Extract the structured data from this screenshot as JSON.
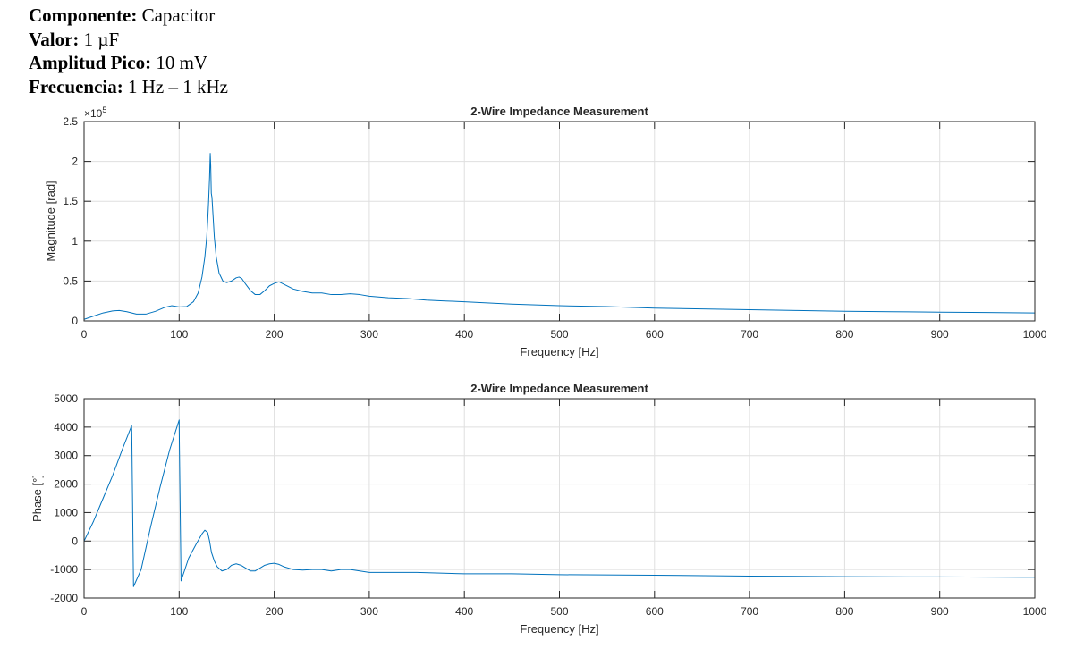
{
  "header": {
    "component_label": "Componente:",
    "component_value": "Capacitor",
    "value_label": "Valor:",
    "value_value": "1 µF",
    "amplitude_label": "Amplitud Pico:",
    "amplitude_value": "10 mV",
    "frequency_label": "Frecuencia:",
    "frequency_value": "1 Hz – 1 kHz"
  },
  "chart_data": [
    {
      "type": "line",
      "title": "2-Wire Impedance Measurement",
      "xlabel": "Frequency [Hz]",
      "ylabel": "Magnitude [rad]",
      "xlim": [
        0,
        1000
      ],
      "ylim": [
        0,
        2.5
      ],
      "y_multiplier_label": "×10",
      "y_multiplier_exp": "5",
      "xticks": [
        "0",
        "100",
        "200",
        "300",
        "400",
        "500",
        "600",
        "700",
        "800",
        "900",
        "1000"
      ],
      "yticks": [
        "0",
        "0.5",
        "1",
        "1.5",
        "2",
        "2.5"
      ],
      "grid": true,
      "line_color": "#0072BD",
      "series": [
        {
          "x": [
            0,
            10,
            20,
            30,
            37,
            45,
            55,
            65,
            75,
            85,
            92,
            100,
            108,
            115,
            120,
            124,
            127,
            129,
            130,
            131,
            132,
            132.7,
            133.2,
            133.8,
            134.5,
            135.5,
            137,
            139,
            142,
            146,
            150,
            155,
            160,
            163,
            166,
            170,
            175,
            180,
            185,
            190,
            195,
            200,
            205,
            210,
            220,
            230,
            240,
            250,
            260,
            270,
            280,
            290,
            300,
            320,
            340,
            360,
            380,
            400,
            450,
            500,
            550,
            600,
            650,
            700,
            750,
            800,
            850,
            900,
            950,
            1000
          ],
          "y": [
            0.02,
            0.06,
            0.1,
            0.125,
            0.13,
            0.115,
            0.085,
            0.085,
            0.12,
            0.17,
            0.19,
            0.175,
            0.18,
            0.24,
            0.35,
            0.55,
            0.8,
            1.05,
            1.25,
            1.5,
            1.8,
            2.1,
            1.95,
            1.6,
            1.55,
            1.35,
            1.05,
            0.8,
            0.6,
            0.5,
            0.48,
            0.5,
            0.54,
            0.55,
            0.53,
            0.46,
            0.38,
            0.33,
            0.33,
            0.38,
            0.44,
            0.47,
            0.49,
            0.46,
            0.4,
            0.37,
            0.35,
            0.35,
            0.33,
            0.33,
            0.34,
            0.33,
            0.31,
            0.29,
            0.28,
            0.26,
            0.25,
            0.24,
            0.21,
            0.19,
            0.18,
            0.16,
            0.15,
            0.14,
            0.13,
            0.12,
            0.115,
            0.11,
            0.105,
            0.1
          ]
        }
      ]
    },
    {
      "type": "line",
      "title": "2-Wire Impedance Measurement",
      "xlabel": "Frequency [Hz]",
      "ylabel": "Phase [°]",
      "xlim": [
        0,
        1000
      ],
      "ylim": [
        -2000,
        5000
      ],
      "xticks": [
        "0",
        "100",
        "200",
        "300",
        "400",
        "500",
        "600",
        "700",
        "800",
        "900",
        "1000"
      ],
      "yticks": [
        "-2000",
        "-1000",
        "0",
        "1000",
        "2000",
        "3000",
        "4000",
        "5000"
      ],
      "grid": true,
      "line_color": "#0072BD",
      "series": [
        {
          "x": [
            0,
            10,
            20,
            30,
            40,
            50,
            50.2,
            52,
            60,
            70,
            80,
            90,
            100,
            100.2,
            102,
            110,
            118,
            124,
            127,
            130,
            132,
            134,
            137,
            140,
            145,
            150,
            155,
            160,
            165,
            170,
            175,
            180,
            185,
            190,
            195,
            200,
            205,
            210,
            220,
            230,
            240,
            250,
            260,
            270,
            280,
            290,
            300,
            350,
            400,
            450,
            500,
            600,
            700,
            800,
            900,
            1000
          ],
          "y": [
            0,
            700,
            1500,
            2300,
            3200,
            4050,
            3800,
            -1600,
            -1000,
            500,
            1900,
            3200,
            4250,
            3500,
            -1400,
            -600,
            -100,
            250,
            380,
            300,
            0,
            -400,
            -700,
            -900,
            -1050,
            -1000,
            -850,
            -800,
            -850,
            -950,
            -1050,
            -1050,
            -950,
            -850,
            -800,
            -780,
            -820,
            -900,
            -1000,
            -1020,
            -1000,
            -1000,
            -1050,
            -1000,
            -1000,
            -1050,
            -1100,
            -1100,
            -1150,
            -1150,
            -1180,
            -1200,
            -1230,
            -1250,
            -1260,
            -1270
          ]
        }
      ]
    }
  ]
}
